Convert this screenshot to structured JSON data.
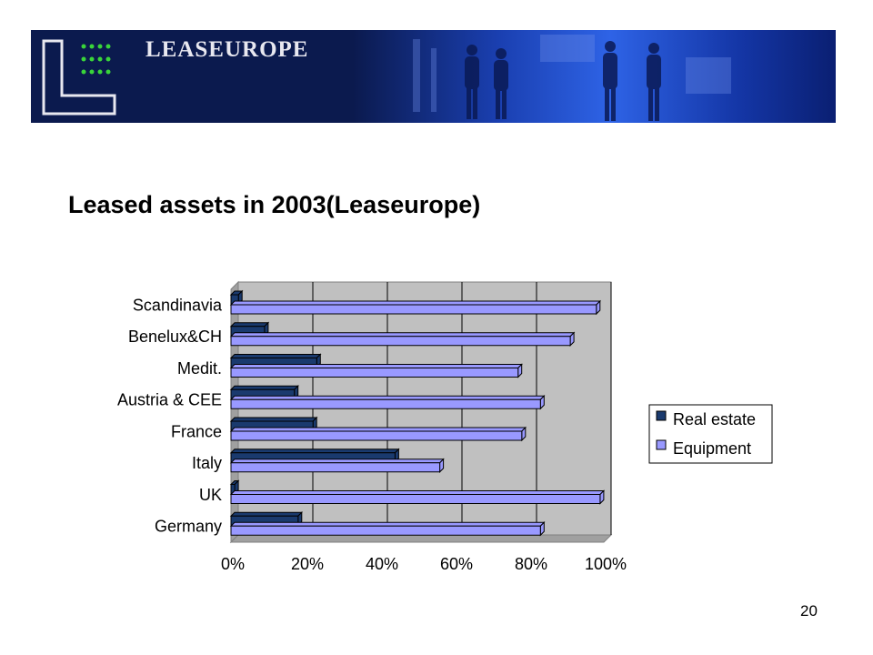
{
  "header": {
    "brand": "LEASEUROPE",
    "logo_icon": "leaseurope-logo-icon"
  },
  "slide": {
    "title": "Leased assets in 2003(Leaseurope)",
    "page_number": "20"
  },
  "colors": {
    "real_estate": "#1a3a6e",
    "equipment": "#9999ff",
    "plot_bg": "#c0c0c0"
  },
  "chart_data": {
    "type": "bar",
    "orientation": "horizontal",
    "stacked_display": "clustered",
    "title": "",
    "xlabel": "",
    "ylabel": "",
    "categories": [
      "Scandinavia",
      "Benelux&CH",
      "Medit.",
      "Austria & CEE",
      "France",
      "Italy",
      "UK",
      "Germany"
    ],
    "series": [
      {
        "name": "Real estate",
        "values": [
          2,
          9,
          23,
          17,
          22,
          44,
          1,
          18
        ]
      },
      {
        "name": "Equipment",
        "values": [
          98,
          91,
          77,
          83,
          78,
          56,
          99,
          83
        ]
      }
    ],
    "xlim": [
      0,
      100
    ],
    "x_ticks": [
      "0%",
      "20%",
      "40%",
      "60%",
      "80%",
      "100%"
    ],
    "grid": true,
    "legend": "right"
  }
}
